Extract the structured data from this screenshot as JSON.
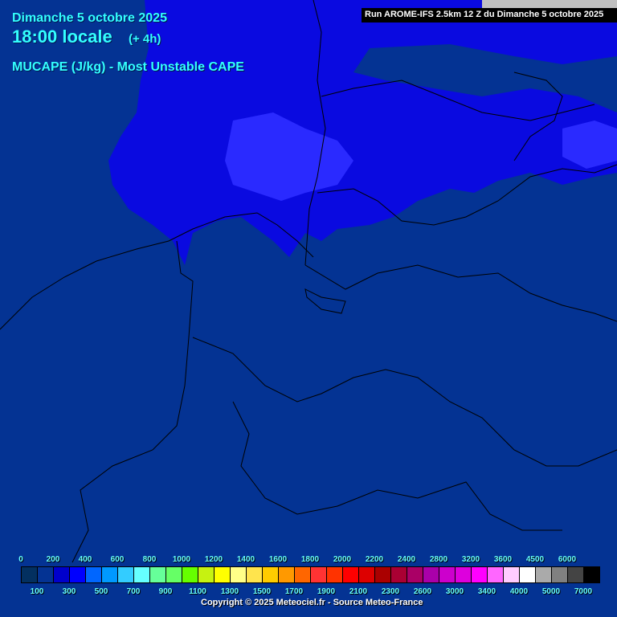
{
  "header": {
    "date": "Dimanche 5 octobre 2025",
    "time": "18:00 locale",
    "lead": "(+ 4h)",
    "parameter": "MUCAPE (J/kg) - Most Unstable CAPE",
    "run": "Run AROME-IFS 2.5km 12 Z du Dimanche 5 octobre 2025"
  },
  "map_colors": {
    "background": "#043393",
    "cape_low": "#0a0ae0",
    "cape_mid": "#2a2aff",
    "outside_domain": "#c0c0c0",
    "text": "#33ffff"
  },
  "legend": {
    "colors": [
      "#033060",
      "#043393",
      "#0000cc",
      "#0000ff",
      "#0066ff",
      "#0099ff",
      "#33ccff",
      "#66ffff",
      "#66ff99",
      "#66ff66",
      "#66ff00",
      "#c6f211",
      "#ffff00",
      "#ffff88",
      "#ffe44d",
      "#ffcc00",
      "#ff9900",
      "#ff6600",
      "#ff3333",
      "#ff3300",
      "#ff0000",
      "#dd0000",
      "#aa0000",
      "#aa0033",
      "#aa0066",
      "#aa00aa",
      "#cc00cc",
      "#dd00dd",
      "#ff00ff",
      "#ff66ff",
      "#ffccff",
      "#ffffff",
      "#aaaaaa",
      "#808080",
      "#444444",
      "#000000"
    ],
    "top_labels": [
      "0",
      "200",
      "400",
      "600",
      "800",
      "1000",
      "1200",
      "1400",
      "1600",
      "1800",
      "2000",
      "2200",
      "2400",
      "2800",
      "3200",
      "3600",
      "4500",
      "6000"
    ],
    "bottom_labels": [
      "100",
      "300",
      "500",
      "700",
      "900",
      "1100",
      "1300",
      "1500",
      "1700",
      "1900",
      "2100",
      "2300",
      "2600",
      "3000",
      "3400",
      "4000",
      "5000",
      "7000"
    ]
  },
  "footer": {
    "copyright": "Copyright © 2025 Meteociel.fr - Source Meteo-France"
  }
}
